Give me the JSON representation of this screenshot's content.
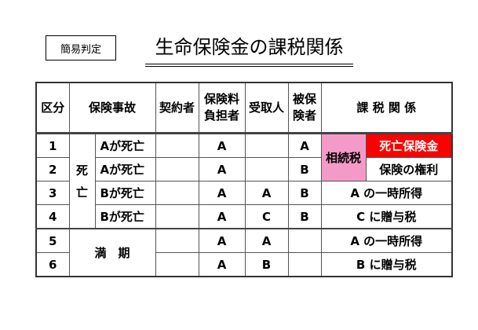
{
  "badge": "簡易判定",
  "title": "生命保険金の課税関係",
  "table": {
    "headers": {
      "kubun": "区分",
      "jiko": "保険事故",
      "keiyaku": "契約者",
      "hokenryo_1": "保険料",
      "hokenryo_2": "負担者",
      "uketori": "受取人",
      "hihoken_1": "被保",
      "hihoken_2": "険者",
      "kazei": "課 税 関 係"
    },
    "death_group": {
      "line1": "死",
      "line2": "亡"
    },
    "maturity_group": "満　期",
    "rows": [
      {
        "no": "1",
        "event": "Aが死亡",
        "keiyaku": "",
        "payer": "A",
        "receiver": "",
        "insured": "A"
      },
      {
        "no": "2",
        "event": "Aが死亡",
        "keiyaku": "",
        "payer": "A",
        "receiver": "",
        "insured": "B"
      },
      {
        "no": "3",
        "event": "Bが死亡",
        "keiyaku": "",
        "payer": "A",
        "receiver": "A",
        "insured": "B",
        "tax": "A の一時所得"
      },
      {
        "no": "4",
        "event": "Bが死亡",
        "keiyaku": "",
        "payer": "A",
        "receiver": "C",
        "insured": "B",
        "tax": "C に贈与税"
      },
      {
        "no": "5",
        "keiyaku": "",
        "payer": "A",
        "receiver": "A",
        "insured": "",
        "tax": "A の一時所得"
      },
      {
        "no": "6",
        "keiyaku": "",
        "payer": "A",
        "receiver": "B",
        "insured": "",
        "tax": "B に贈与税"
      }
    ],
    "inheritance_tax": "相続税",
    "death_benefit": "死亡保険金",
    "policy_right": "保険の権利",
    "colors": {
      "inheritance": "#f49ac8",
      "death_benefit": "#ff0000"
    }
  }
}
